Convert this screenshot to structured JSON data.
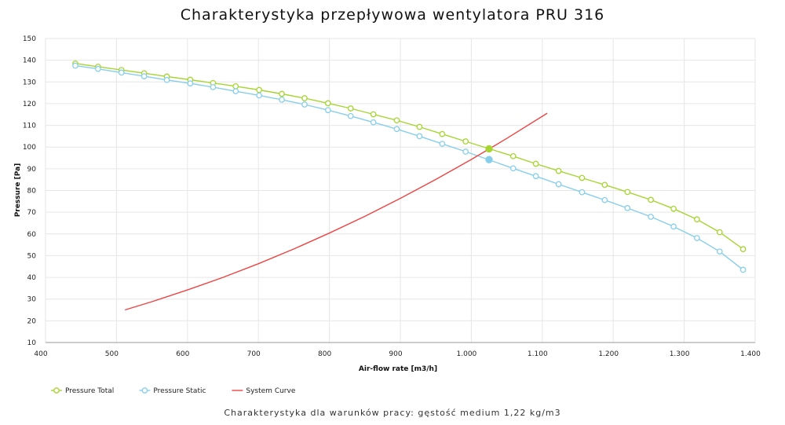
{
  "chart_data": {
    "type": "line",
    "title": "Charakterystyka przepływowa wentylatora PRU 316",
    "subtitle": "Charakterystyka dla warunków pracy: gęstość medium 1,22 kg/m3",
    "xlabel": "Air-flow rate [m3/h]",
    "ylabel": "Pressure [Pa]",
    "xlim": [
      400,
      1400
    ],
    "ylim": [
      10,
      150
    ],
    "x_ticks": [
      "400",
      "500",
      "600",
      "700",
      "800",
      "900",
      "1.000",
      "1.100",
      "1.200",
      "1.300",
      "1.400"
    ],
    "y_ticks": [
      "10",
      "20",
      "30",
      "40",
      "50",
      "60",
      "70",
      "80",
      "90",
      "100",
      "110",
      "120",
      "130",
      "140",
      "150"
    ],
    "grid": true,
    "legend_position": "bottom-left",
    "series": [
      {
        "name": "Pressure Total",
        "color": "#a6d531",
        "marker": "open-circle",
        "x": [
          442,
          474,
          507,
          539,
          571,
          604,
          636,
          668,
          701,
          733,
          765,
          798,
          830,
          862,
          895,
          927,
          959,
          992,
          1059,
          1091,
          1123,
          1156,
          1188,
          1220,
          1253,
          1285,
          1318,
          1350,
          1383
        ],
        "y": [
          138.5,
          137,
          135.5,
          134,
          132.5,
          131,
          129.5,
          128,
          126.3,
          124.5,
          122.5,
          120.2,
          117.8,
          115.1,
          112.3,
          109.3,
          106,
          102.6,
          95.8,
          92.3,
          89,
          85.8,
          82.6,
          79.3,
          75.7,
          71.6,
          66.7,
          60.8,
          53
        ]
      },
      {
        "name": "Pressure Static",
        "color": "#87ceeb",
        "marker": "open-circle",
        "x": [
          442,
          474,
          507,
          539,
          571,
          604,
          636,
          668,
          701,
          733,
          765,
          798,
          830,
          862,
          895,
          927,
          959,
          992,
          1059,
          1091,
          1123,
          1156,
          1188,
          1220,
          1253,
          1285,
          1318,
          1350,
          1383
        ],
        "y": [
          137.5,
          136,
          134.3,
          132.6,
          130.9,
          129.3,
          127.6,
          125.7,
          123.8,
          121.8,
          119.6,
          117,
          114.3,
          111.4,
          108.3,
          105,
          101.5,
          97.9,
          90.2,
          86.6,
          82.9,
          79.2,
          75.6,
          71.9,
          67.9,
          63.4,
          58.1,
          51.9,
          43.5
        ]
      },
      {
        "name": "System Curve",
        "color": "#ee4444",
        "marker": "none",
        "x": [
          512,
          550,
          600,
          650,
          700,
          750,
          800,
          850,
          900,
          950,
          1000,
          1050,
          1107
        ],
        "y": [
          25,
          28.8,
          34.2,
          40,
          46.3,
          53.1,
          60.4,
          68.1,
          76.4,
          85.1,
          94.3,
          104,
          115.6
        ]
      }
    ],
    "operating_points": [
      {
        "x": 1025,
        "y": 99.2,
        "color": "#a6d531"
      },
      {
        "x": 1025,
        "y": 94.2,
        "color": "#87ceeb"
      }
    ]
  }
}
